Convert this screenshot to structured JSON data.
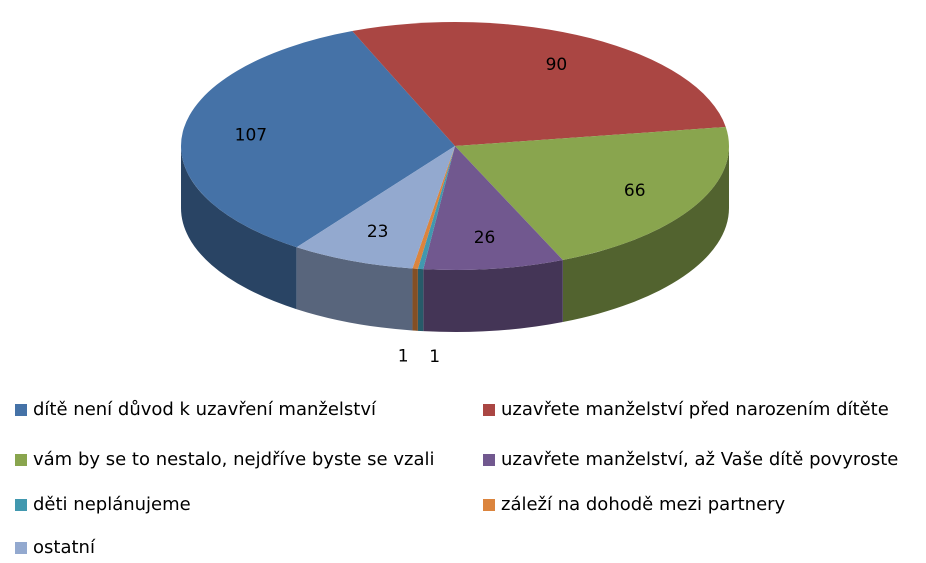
{
  "chart_data": {
    "type": "pie3d",
    "categories": [
      "dítě není důvod k uzavření manželství",
      "uzavřete manželství před narozením dítěte",
      "vám by se to nestalo, nejdříve byste se vzali",
      "uzavřete manželství, až Vaše dítě povyroste",
      "děti neplánujeme",
      "záleží na dohodě mezi partnery",
      "ostatní"
    ],
    "values": [
      107,
      90,
      66,
      26,
      1,
      1,
      23
    ],
    "colors": [
      "#4572A7",
      "#AA4643",
      "#89A54E",
      "#71588F",
      "#4198AF",
      "#DB843D",
      "#93A9CF"
    ],
    "legend": "bottom"
  }
}
